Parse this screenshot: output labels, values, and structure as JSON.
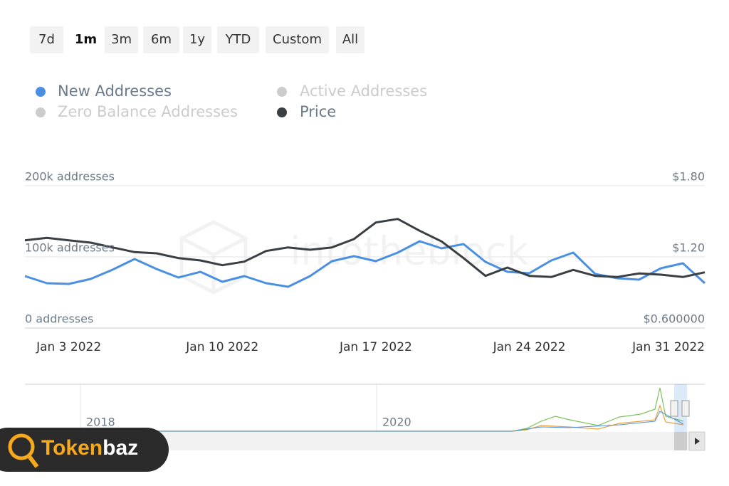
{
  "range_buttons": [
    "7d",
    "1m",
    "3m",
    "6m",
    "1y",
    "YTD",
    "Custom",
    "All"
  ],
  "selected_range": "1m",
  "chart_data": {
    "type": "line",
    "watermark": "intotheblock",
    "x": [
      "2022-01-01",
      "2022-01-02",
      "2022-01-03",
      "2022-01-04",
      "2022-01-05",
      "2022-01-06",
      "2022-01-07",
      "2022-01-08",
      "2022-01-09",
      "2022-01-10",
      "2022-01-11",
      "2022-01-12",
      "2022-01-13",
      "2022-01-14",
      "2022-01-15",
      "2022-01-16",
      "2022-01-17",
      "2022-01-18",
      "2022-01-19",
      "2022-01-20",
      "2022-01-21",
      "2022-01-22",
      "2022-01-23",
      "2022-01-24",
      "2022-01-25",
      "2022-01-26",
      "2022-01-27",
      "2022-01-28",
      "2022-01-29",
      "2022-01-30",
      "2022-01-31",
      "2022-02-01"
    ],
    "xlim": [
      "2022-01-01",
      "2022-02-01"
    ],
    "xticks": [
      {
        "value": "2022-01-03",
        "label": "Jan 3 2022"
      },
      {
        "value": "2022-01-10",
        "label": "Jan 10 2022"
      },
      {
        "value": "2022-01-17",
        "label": "Jan 17 2022"
      },
      {
        "value": "2022-01-24",
        "label": "Jan 24 2022"
      },
      {
        "value": "2022-01-31",
        "label": "Jan 31 2022"
      }
    ],
    "ylim": [
      0,
      200000
    ],
    "yticks": [
      {
        "value": 0,
        "label": "0 addresses"
      },
      {
        "value": 100000,
        "label": "100k addresses"
      },
      {
        "value": 200000,
        "label": "200k addresses"
      }
    ],
    "y2lim": [
      0.6,
      1.8
    ],
    "y2ticks": [
      {
        "value": 0.6,
        "label": "$0.600000"
      },
      {
        "value": 1.2,
        "label": "$1.20"
      },
      {
        "value": 1.8,
        "label": "$1.80"
      }
    ],
    "grid": true,
    "series": [
      {
        "name": "New Addresses",
        "color": "#4a90e2",
        "values": [
          73000,
          63000,
          62000,
          69000,
          82000,
          97000,
          83000,
          71000,
          79000,
          65000,
          73000,
          63000,
          58000,
          73000,
          94000,
          101000,
          94000,
          106000,
          122000,
          112000,
          118000,
          93000,
          79000,
          77000,
          95000,
          106000,
          76000,
          70000,
          68000,
          84000,
          91000,
          63000
        ]
      },
      {
        "name": "Price",
        "color": "#3a3f44",
        "axis": "y2",
        "values": [
          1.34,
          1.36,
          1.34,
          1.32,
          1.28,
          1.24,
          1.23,
          1.19,
          1.17,
          1.13,
          1.16,
          1.25,
          1.28,
          1.26,
          1.28,
          1.35,
          1.49,
          1.52,
          1.42,
          1.33,
          1.19,
          1.04,
          1.11,
          1.04,
          1.03,
          1.09,
          1.04,
          1.03,
          1.06,
          1.05,
          1.03,
          1.07
        ]
      }
    ],
    "hidden_series": [
      {
        "name": "Active Addresses"
      },
      {
        "name": "Zero Balance Addresses"
      }
    ],
    "hidden_color": "#cccccc",
    "navigator_labels": [
      "2018",
      "2020"
    ]
  },
  "logo_text": [
    "Token",
    "baz"
  ]
}
